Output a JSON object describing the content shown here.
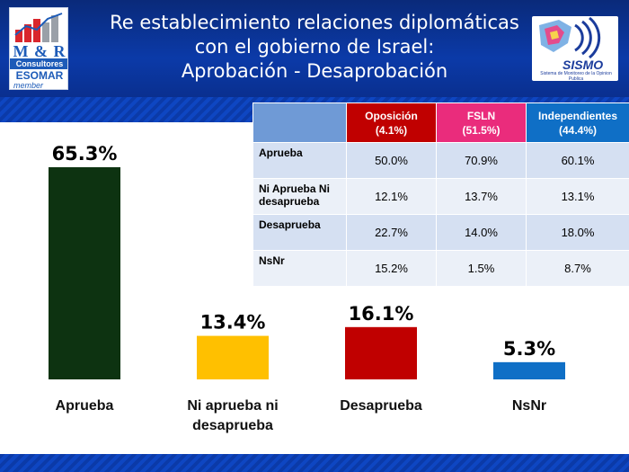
{
  "header": {
    "title_lines": [
      "Re establecimiento relaciones diplomáticas",
      "con el gobierno de Israel:",
      "Aprobación - Desaprobación"
    ]
  },
  "logos": {
    "left": {
      "brand": "M & R",
      "line2": "Consultores",
      "line3": "ESOMAR",
      "line4": "member"
    },
    "right": {
      "brand": "SISMO",
      "subtitle": "Sistema de Monitoreo de la Opinion Publica"
    }
  },
  "table": {
    "headers": [
      {
        "name": "Oposición",
        "pct": "(4.1%)"
      },
      {
        "name": "FSLN",
        "pct": "(51.5%)"
      },
      {
        "name": "Independientes",
        "pct": "(44.4%)"
      }
    ],
    "rows": [
      {
        "label": "Aprueba",
        "values": [
          "50.0%",
          "70.9%",
          "60.1%"
        ]
      },
      {
        "label": "Ni Aprueba Ni desaprueba",
        "values": [
          "12.1%",
          "13.7%",
          "13.1%"
        ]
      },
      {
        "label": "Desaprueba",
        "values": [
          "22.7%",
          "14.0%",
          "18.0%"
        ]
      },
      {
        "label": "NsNr",
        "values": [
          "15.2%",
          "1.5%",
          "8.7%"
        ]
      }
    ]
  },
  "chart_data": {
    "type": "bar",
    "title": "Re establecimiento relaciones diplomáticas con el gobierno de Israel: Aprobación - Desaprobación",
    "categories": [
      "Aprueba",
      "Ni aprueba ni desaprueba",
      "Desaprueba",
      "NsNr"
    ],
    "category_lines": [
      [
        "Aprueba"
      ],
      [
        "Ni aprueba ni",
        "desaprueba"
      ],
      [
        "Desaprueba"
      ],
      [
        "NsNr"
      ]
    ],
    "values": [
      65.3,
      13.4,
      16.1,
      5.3
    ],
    "value_labels": [
      "65.3%",
      "13.4%",
      "16.1%",
      "5.3%"
    ],
    "colors": [
      "#0d3311",
      "#ffc000",
      "#c00000",
      "#0f6fc6"
    ],
    "ylim": [
      0,
      65.3
    ],
    "grid": false,
    "legend": "none"
  }
}
